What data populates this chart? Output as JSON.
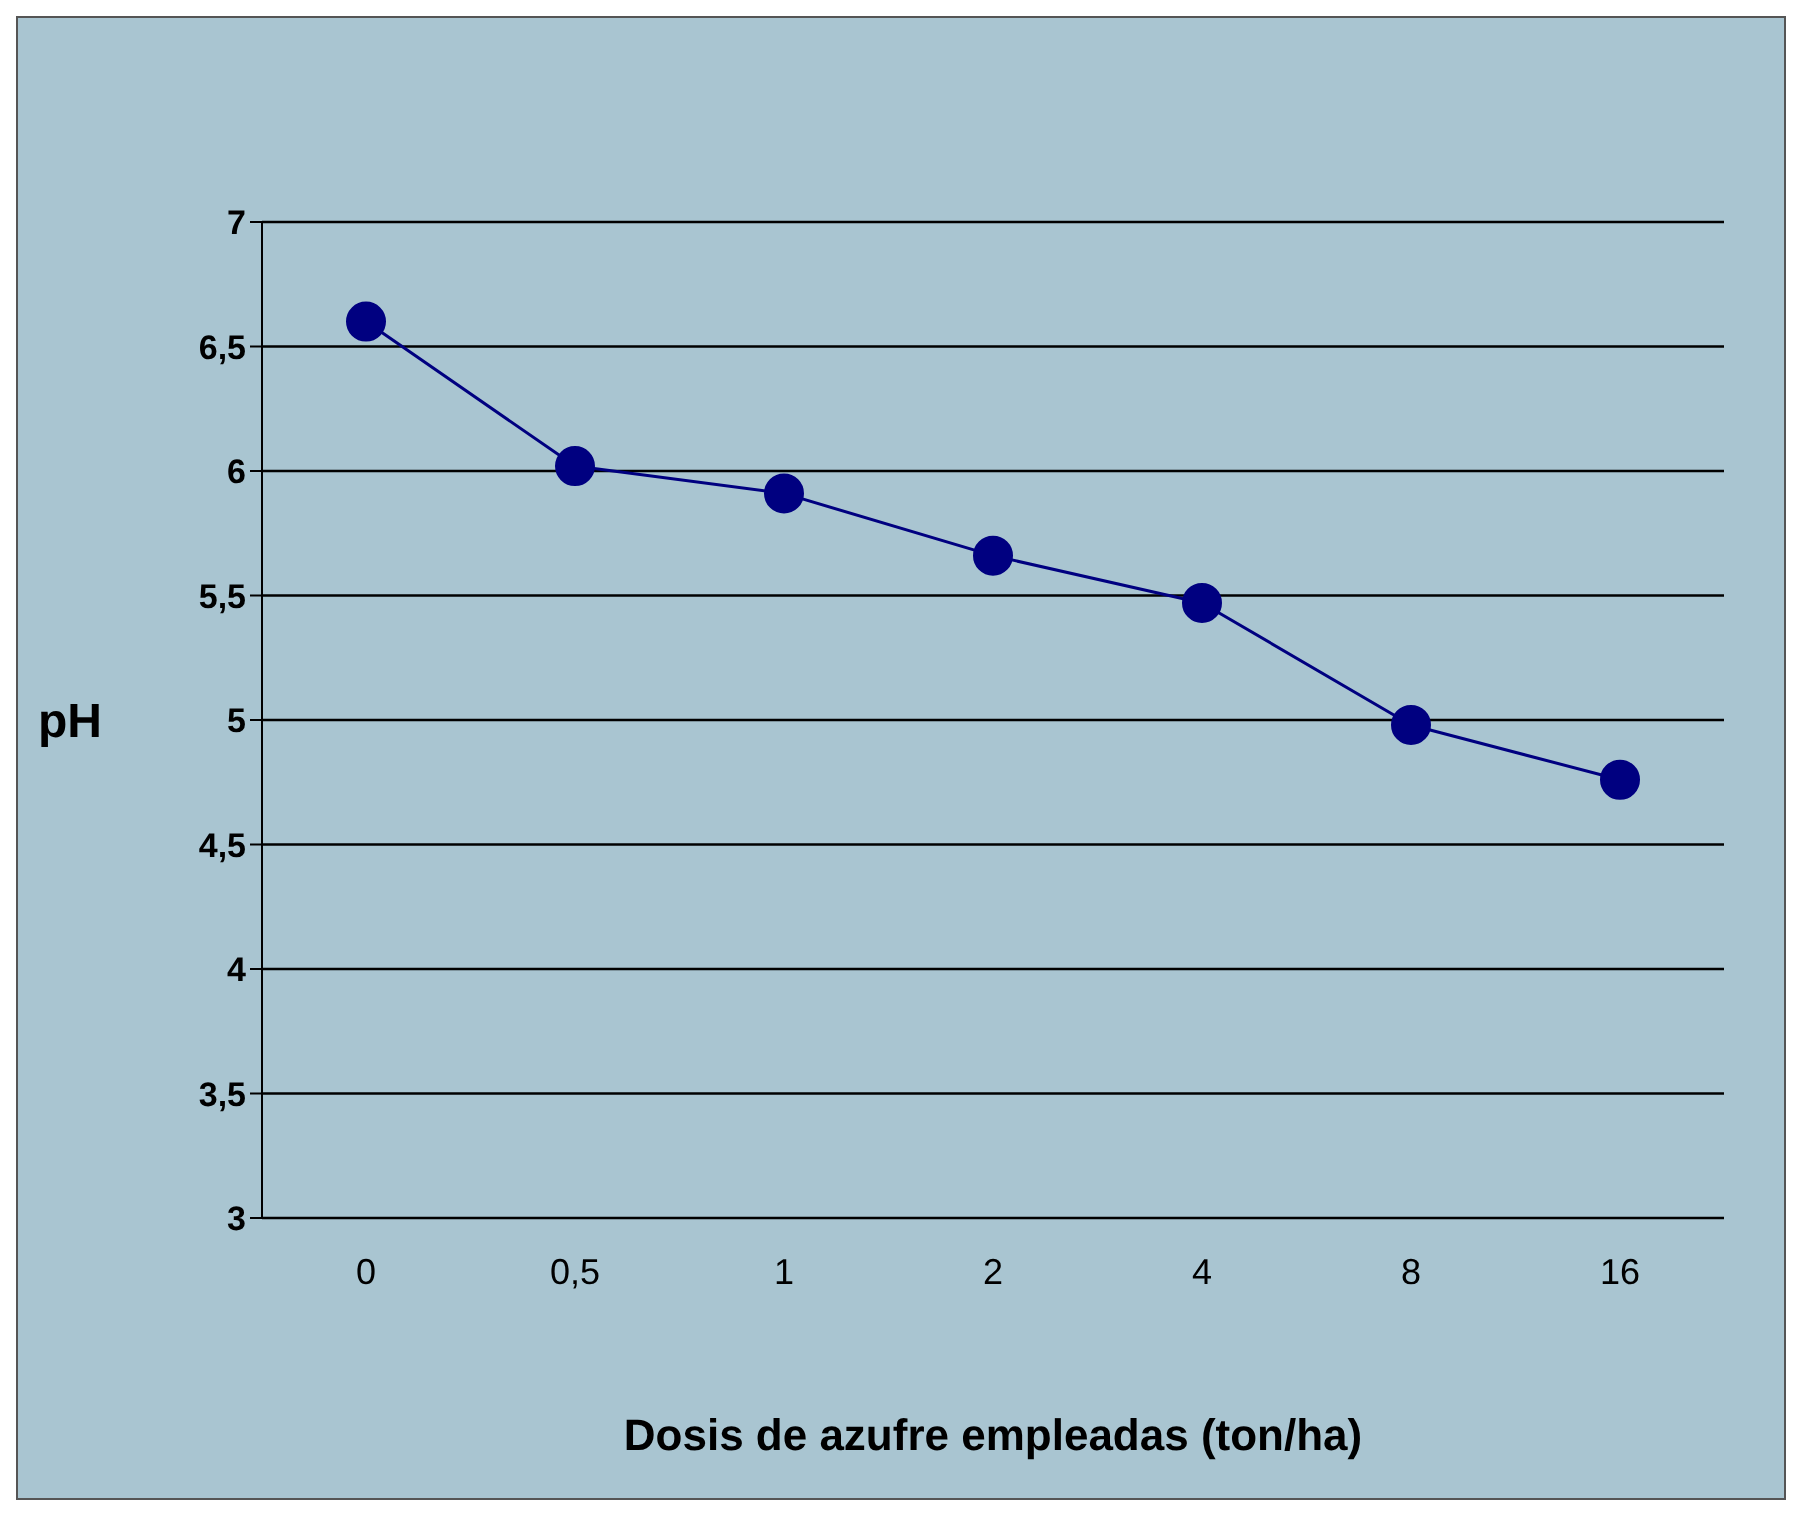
{
  "chart_data": {
    "type": "line",
    "xlabel": "Dosis de azufre empleadas (ton/ha)",
    "ylabel": "pH",
    "categories": [
      "0",
      "0,5",
      "1",
      "2",
      "4",
      "8",
      "16"
    ],
    "series": [
      {
        "color": "#000080",
        "values": [
          6.6,
          6.02,
          5.91,
          5.66,
          5.47,
          4.98,
          4.76
        ]
      }
    ],
    "ylim": [
      3,
      7
    ],
    "yticks": [
      3,
      {
        "value": 3.5,
        "label": "3,5"
      },
      4,
      {
        "value": 4.5,
        "label": "4,5"
      },
      5,
      {
        "value": 5.5,
        "label": "5,5"
      },
      6,
      {
        "value": 6.5,
        "label": "6,5"
      },
      7
    ],
    "grid": "y",
    "marker": "circle"
  }
}
